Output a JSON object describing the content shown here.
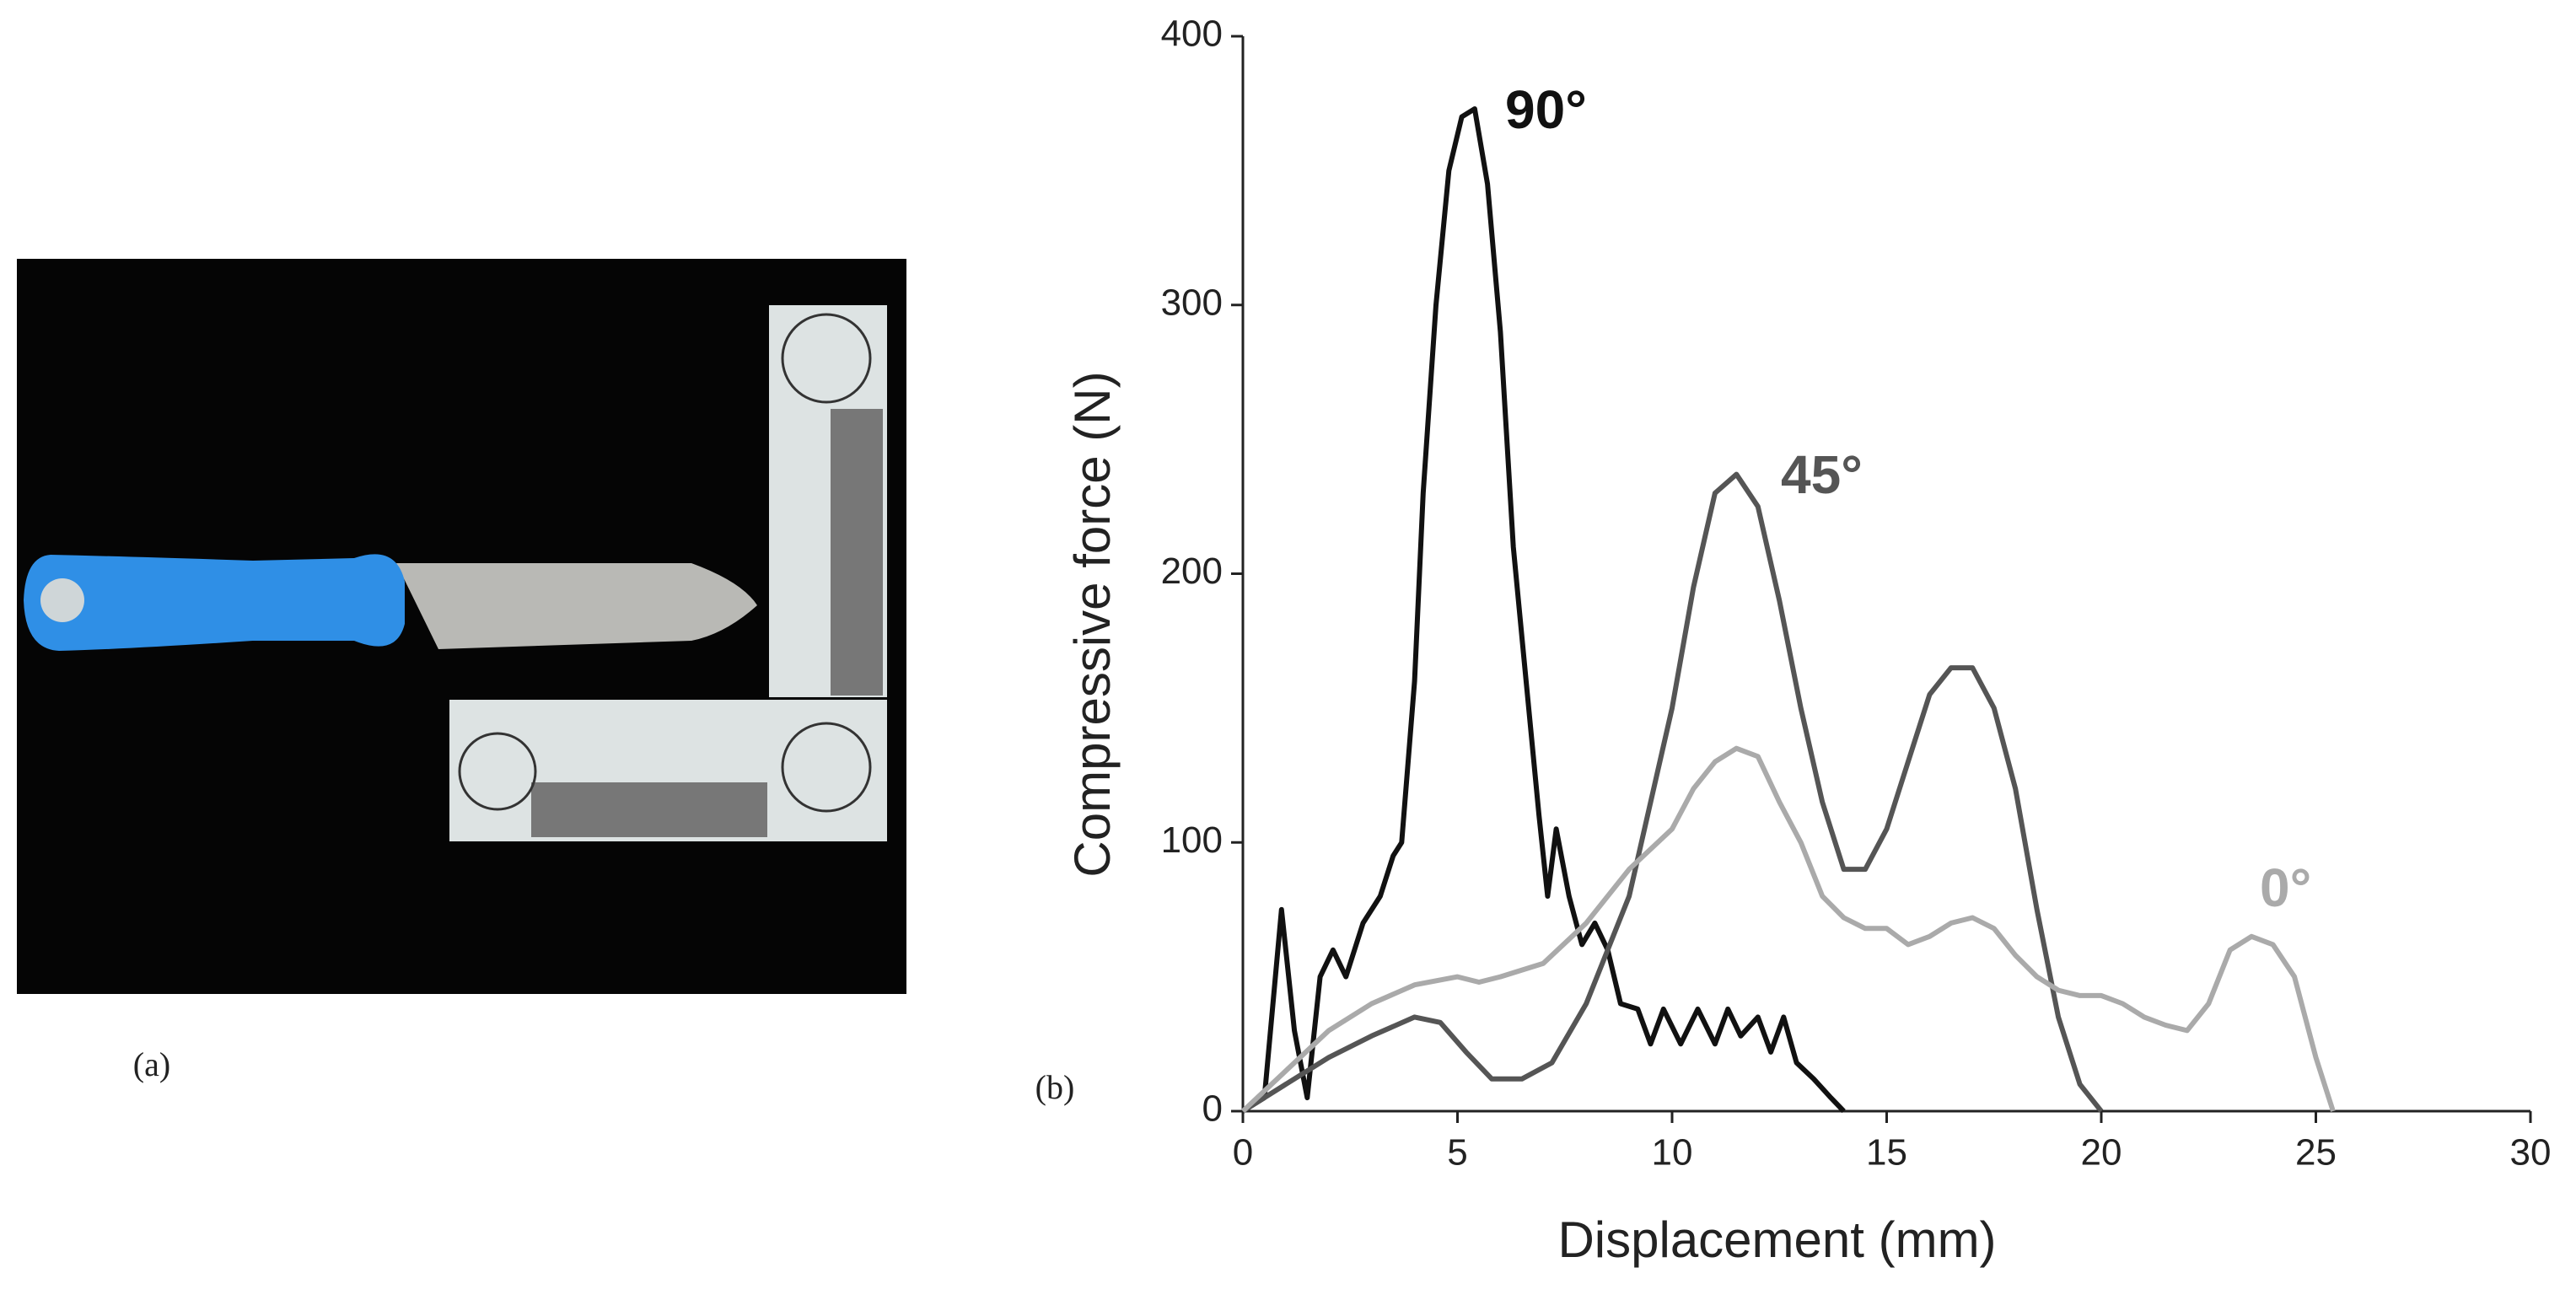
{
  "panel_a_label": "(a)",
  "chart_data": {
    "type": "line",
    "panel_label": "(b)",
    "x_label": "Displacement (mm)",
    "y_label": "Compressive force (N)",
    "xlim": [
      0,
      30
    ],
    "xticks": [
      0,
      5,
      10,
      15,
      20,
      25,
      30
    ],
    "ylim": [
      0,
      400
    ],
    "yticks": [
      0,
      100,
      200,
      300,
      400
    ],
    "series": [
      {
        "name": "90°",
        "color": "#111111",
        "x": [
          0,
          0.5,
          0.9,
          1.2,
          1.5,
          1.8,
          2.1,
          2.4,
          2.8,
          3.2,
          3.5,
          3.7,
          4,
          4.2,
          4.5,
          4.8,
          5.1,
          5.4,
          5.7,
          6,
          6.3,
          6.6,
          6.9,
          7.1,
          7.3,
          7.6,
          7.9,
          8.2,
          8.5,
          8.8,
          9.2,
          9.5,
          9.8,
          10.2,
          10.6,
          11,
          11.3,
          11.6,
          12,
          12.3,
          12.6,
          12.9,
          13.3,
          13.7,
          14
        ],
        "values": [
          0,
          5,
          75,
          30,
          5,
          50,
          60,
          50,
          70,
          80,
          95,
          100,
          160,
          230,
          300,
          350,
          370,
          373,
          345,
          290,
          210,
          160,
          110,
          80,
          105,
          80,
          62,
          70,
          60,
          40,
          38,
          25,
          38,
          25,
          38,
          25,
          38,
          28,
          35,
          22,
          35,
          18,
          12,
          5,
          0
        ]
      },
      {
        "name": "45°",
        "color": "#555555",
        "x": [
          0,
          1,
          2,
          3,
          4,
          4.6,
          5.2,
          5.8,
          6.5,
          7.2,
          8,
          9,
          10,
          10.5,
          11,
          11.5,
          12,
          12.5,
          13,
          13.5,
          14,
          14.5,
          15,
          15.5,
          16,
          16.5,
          17,
          17.5,
          18,
          18.5,
          19,
          19.5,
          20
        ],
        "values": [
          0,
          10,
          20,
          28,
          35,
          33,
          22,
          12,
          12,
          18,
          40,
          80,
          150,
          195,
          230,
          237,
          225,
          190,
          150,
          115,
          90,
          90,
          105,
          130,
          155,
          165,
          165,
          150,
          120,
          75,
          35,
          10,
          0
        ]
      },
      {
        "name": "0°",
        "color": "#aaaaaa",
        "x": [
          0,
          1,
          2,
          3,
          4,
          5,
          5.5,
          6,
          7,
          8,
          9,
          10,
          10.5,
          11,
          11.5,
          12,
          12.5,
          13,
          13.5,
          14,
          14.5,
          15,
          15.5,
          16,
          16.5,
          17,
          17.5,
          18,
          18.5,
          19,
          19.5,
          20,
          20.5,
          21,
          21.5,
          22,
          22.5,
          23,
          23.5,
          24,
          24.5,
          25,
          25.4
        ],
        "values": [
          0,
          15,
          30,
          40,
          47,
          50,
          48,
          50,
          55,
          70,
          90,
          105,
          120,
          130,
          135,
          132,
          115,
          100,
          80,
          72,
          68,
          68,
          62,
          65,
          70,
          72,
          68,
          58,
          50,
          45,
          43,
          43,
          40,
          35,
          32,
          30,
          40,
          60,
          65,
          62,
          50,
          20,
          0
        ]
      }
    ]
  }
}
